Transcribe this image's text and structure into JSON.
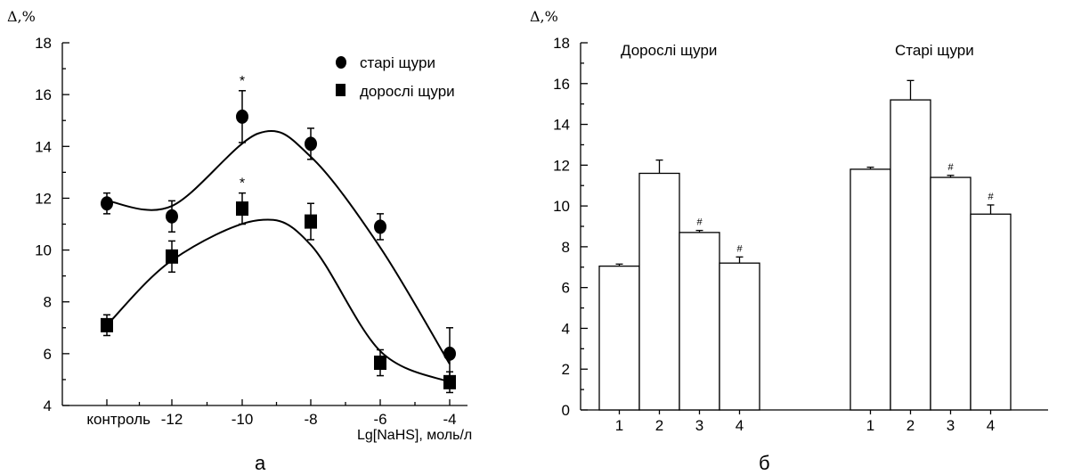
{
  "charts": [
    {
      "panel_label": "а",
      "ylabel": "Δ,%",
      "xlabel": "Lg[NaHS], моль/л",
      "y_ticks": [
        "18",
        "16",
        "14",
        "12",
        "10",
        "8",
        "6",
        "4"
      ],
      "x_ticks": [
        "контроль",
        "-12",
        "-10",
        "-8",
        "-6",
        "-4"
      ],
      "legend": [
        "старі щури",
        "дорослі щури"
      ]
    },
    {
      "panel_label": "б",
      "ylabel": "Δ,%",
      "y_ticks": [
        "18",
        "16",
        "14",
        "12",
        "10",
        "8",
        "6",
        "4",
        "2",
        "0"
      ],
      "group_labels": [
        "Дорослі щури",
        "Старі щури"
      ],
      "x_ticks": [
        "1",
        "2",
        "3",
        "4",
        "1",
        "2",
        "3",
        "4"
      ]
    }
  ],
  "chart_data": [
    {
      "type": "scatter",
      "x": [
        "контроль",
        "-12",
        "-10",
        "-8",
        "-6",
        "-4"
      ],
      "ylim": [
        4,
        18
      ],
      "legend_position": "top-right",
      "series": [
        {
          "name": "старі щури",
          "marker": "circle",
          "values": [
            11.8,
            11.3,
            15.15,
            14.1,
            10.9,
            6.0
          ],
          "errors": [
            0.4,
            0.6,
            1.0,
            0.6,
            0.5,
            1.0
          ],
          "annotations": [
            null,
            null,
            "*",
            null,
            null,
            null
          ],
          "fit_curve": [
            11.9,
            11.7,
            14.5,
            13.6,
            10.1,
            5.6
          ]
        },
        {
          "name": "дорослі щури",
          "marker": "square",
          "values": [
            7.1,
            9.75,
            11.6,
            11.1,
            5.65,
            4.9
          ],
          "errors": [
            0.4,
            0.6,
            0.6,
            0.7,
            0.5,
            0.4
          ],
          "annotations": [
            null,
            null,
            "*",
            null,
            null,
            null
          ],
          "fit_curve": [
            7.1,
            9.6,
            11.15,
            10.2,
            6.1,
            4.9
          ]
        }
      ]
    },
    {
      "type": "bar",
      "ylim": [
        0,
        18
      ],
      "groups": [
        {
          "name": "Дорослі щури",
          "categories": [
            "1",
            "2",
            "3",
            "4"
          ],
          "values": [
            7.05,
            11.6,
            8.7,
            7.2
          ],
          "errors": [
            0.1,
            0.65,
            0.1,
            0.3
          ],
          "annotations": [
            null,
            null,
            "#",
            "#"
          ]
        },
        {
          "name": "Старі щури",
          "categories": [
            "1",
            "2",
            "3",
            "4"
          ],
          "values": [
            11.8,
            15.2,
            11.4,
            9.6
          ],
          "errors": [
            0.1,
            0.95,
            0.1,
            0.45
          ],
          "annotations": [
            null,
            null,
            "#",
            "#"
          ]
        }
      ]
    }
  ]
}
